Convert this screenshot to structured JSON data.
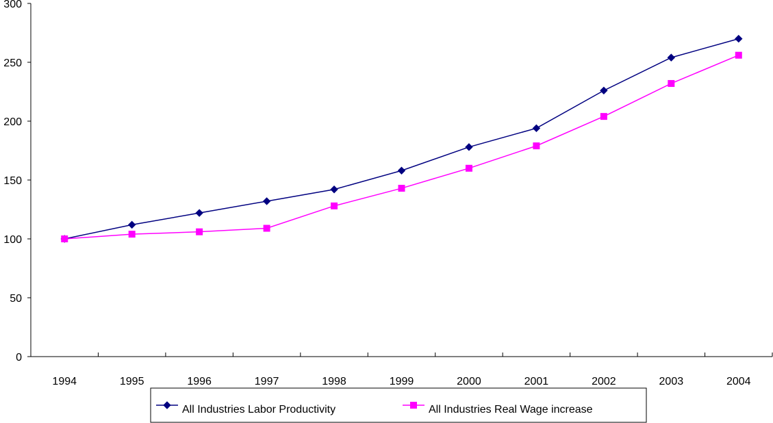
{
  "chart_data": {
    "type": "line",
    "title": "",
    "xlabel": "",
    "ylabel": "",
    "categories": [
      "1994",
      "1995",
      "1996",
      "1997",
      "1998",
      "1999",
      "2000",
      "2001",
      "2002",
      "2003",
      "2004"
    ],
    "ylim": [
      0,
      300
    ],
    "yticks": [
      "0",
      "50",
      "100",
      "150",
      "200",
      "250",
      "300"
    ],
    "grid": false,
    "legend_position": "bottom",
    "series": [
      {
        "name": "All Industries Labor Productivity",
        "color": "#000080",
        "marker": "diamond",
        "values": [
          100,
          112,
          122,
          132,
          142,
          158,
          178,
          194,
          226,
          254,
          270
        ]
      },
      {
        "name": "All Industries Real Wage increase",
        "color": "#FF00FF",
        "marker": "square",
        "values": [
          100,
          104,
          106,
          109,
          128,
          143,
          160,
          179,
          204,
          232,
          256
        ]
      }
    ]
  }
}
